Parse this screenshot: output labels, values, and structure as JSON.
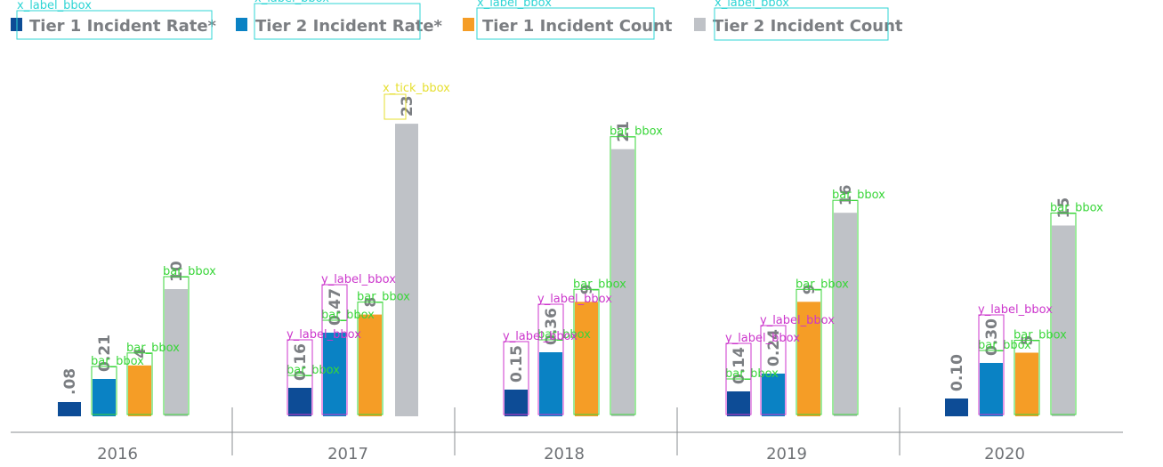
{
  "chart_data": {
    "type": "bar",
    "categories": [
      "2016",
      "2017",
      "2018",
      "2019",
      "2020"
    ],
    "series": [
      {
        "name": "Tier 1 Incident Rate*",
        "color": "#0d4c96",
        "values": [
          0.08,
          0.16,
          0.15,
          0.14,
          0.1
        ],
        "labels": [
          ".08",
          "0.16",
          "0.15",
          "0.14",
          "0.10"
        ],
        "labels_shown": [
          true,
          true,
          true,
          true,
          true
        ]
      },
      {
        "name": "Tier 2 Incident Rate*",
        "color": "#0a82c4",
        "values": [
          0.21,
          0.47,
          0.36,
          0.24,
          0.3
        ],
        "labels": [
          "0.21",
          "0.47",
          "0.36",
          "0.24",
          "0.30"
        ],
        "labels_shown": [
          true,
          true,
          true,
          true,
          true
        ]
      },
      {
        "name": "Tier 1 Incident Count",
        "color": "#f59d26",
        "values": [
          4,
          8,
          9,
          9,
          5
        ],
        "labels": [
          "4",
          "8",
          "9",
          "9",
          "5"
        ],
        "labels_shown": [
          true,
          true,
          true,
          true,
          true
        ]
      },
      {
        "name": "Tier 2 Incident Count",
        "color": "#bfc2c7",
        "values": [
          10,
          23,
          21,
          16,
          15
        ],
        "labels": [
          "10",
          "23",
          "21",
          "16",
          "15"
        ],
        "labels_shown": [
          true,
          true,
          true,
          true,
          true
        ]
      }
    ],
    "legend_position": "top-left",
    "grid": false
  },
  "annotations": {
    "colors": {
      "x_label": "#2fd5d5",
      "x_tick": "#e6df2f",
      "bar": "#39d639",
      "y_label": "#cc36cc"
    },
    "x_label_tag": "x_label_bbox",
    "x_tick_tag": "x_tick_bbox",
    "bar_tag": "bar_bbox",
    "y_label_tag": "y_label_bbox"
  }
}
